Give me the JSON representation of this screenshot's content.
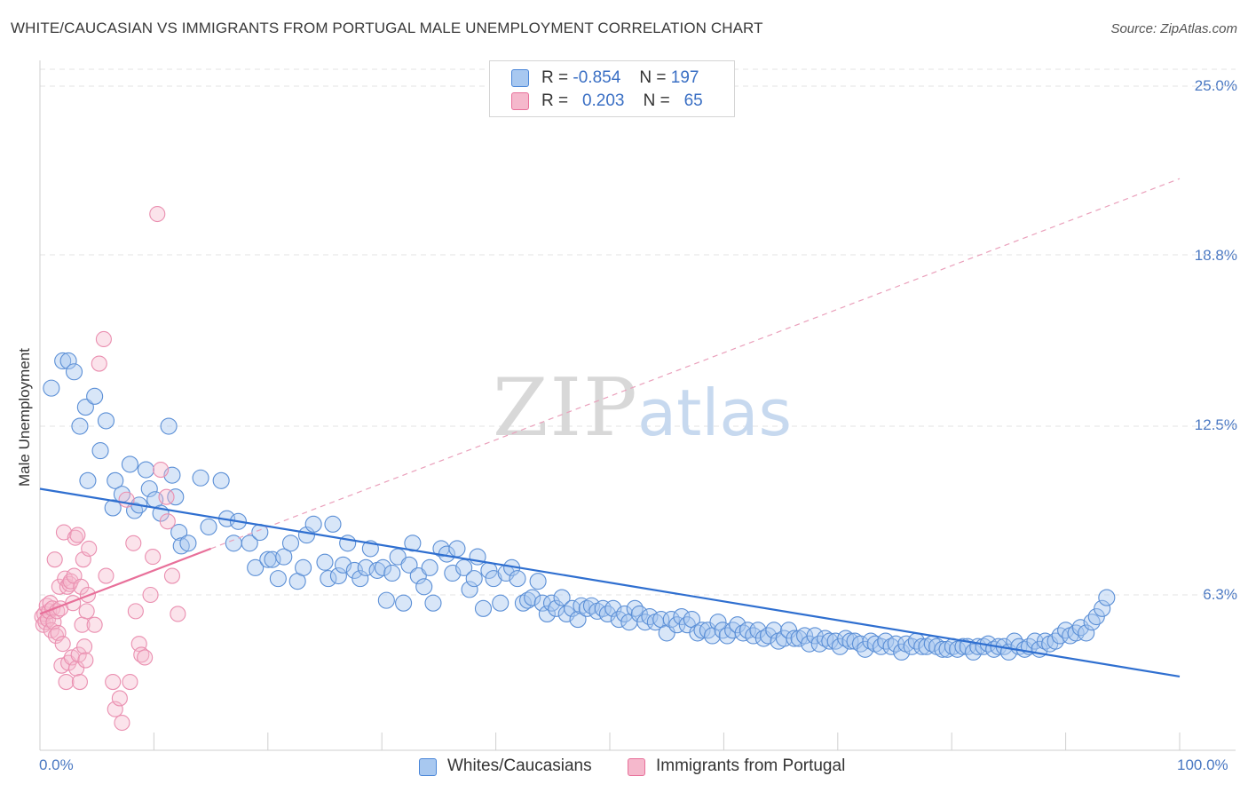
{
  "title": "WHITE/CAUCASIAN VS IMMIGRANTS FROM PORTUGAL MALE UNEMPLOYMENT CORRELATION CHART",
  "source": "Source: ZipAtlas.com",
  "colors": {
    "blue": "#4a86d8",
    "blue_fill": "#a8c8f0",
    "pink": "#e8709a",
    "pink_fill": "#f5b8cc",
    "axis_text": "#4a78c2"
  },
  "legend": {
    "rows": [
      {
        "r_label": "R =",
        "r_value": "-0.854",
        "n_label": "N =",
        "n_value": "197"
      },
      {
        "r_label": "R =",
        "r_value": "0.203",
        "n_label": "N =",
        "n_value": "65"
      }
    ]
  },
  "bottom_legend": [
    "Whites/Caucasians",
    "Immigrants from Portugal"
  ],
  "chart_data": {
    "type": "scatter",
    "xlabel": "",
    "ylabel": "Male Unemployment",
    "x_ticks": [
      "0.0%",
      "100.0%"
    ],
    "y_ticks": [
      "25.0%",
      "18.8%",
      "12.5%",
      "6.3%"
    ],
    "y_tick_values": [
      25.0,
      18.8,
      12.5,
      6.3
    ],
    "xlim": [
      0,
      100
    ],
    "ylim": [
      0,
      25.0
    ],
    "series": [
      {
        "name": "Whites/Caucasians",
        "trend": {
          "x": [
            0,
            100
          ],
          "y": [
            10.2,
            3.3
          ]
        },
        "points": [
          [
            1,
            13.9
          ],
          [
            2,
            14.9
          ],
          [
            2.5,
            14.9
          ],
          [
            3,
            14.5
          ],
          [
            3.5,
            12.5
          ],
          [
            4,
            13.2
          ],
          [
            4.2,
            10.5
          ],
          [
            4.8,
            13.6
          ],
          [
            5.3,
            11.6
          ],
          [
            5.8,
            12.7
          ],
          [
            6.4,
            9.5
          ],
          [
            6.6,
            10.5
          ],
          [
            7.2,
            10.0
          ],
          [
            7.9,
            11.1
          ],
          [
            8.3,
            9.4
          ],
          [
            8.7,
            9.6
          ],
          [
            9.3,
            10.9
          ],
          [
            9.6,
            10.2
          ],
          [
            10.1,
            9.8
          ],
          [
            10.6,
            9.3
          ],
          [
            11.3,
            12.5
          ],
          [
            11.6,
            10.7
          ],
          [
            11.9,
            9.9
          ],
          [
            12.2,
            8.6
          ],
          [
            12.4,
            8.1
          ],
          [
            13.0,
            8.2
          ],
          [
            14.1,
            10.6
          ],
          [
            14.8,
            8.8
          ],
          [
            15.9,
            10.5
          ],
          [
            16.4,
            9.1
          ],
          [
            17.0,
            8.2
          ],
          [
            17.4,
            9.0
          ],
          [
            18.4,
            8.2
          ],
          [
            18.9,
            7.3
          ],
          [
            19.3,
            8.6
          ],
          [
            20.0,
            7.6
          ],
          [
            20.4,
            7.6
          ],
          [
            20.9,
            6.9
          ],
          [
            21.4,
            7.7
          ],
          [
            22.0,
            8.2
          ],
          [
            22.6,
            6.8
          ],
          [
            23.1,
            7.3
          ],
          [
            23.4,
            8.5
          ],
          [
            24.0,
            8.9
          ],
          [
            25.0,
            7.5
          ],
          [
            25.3,
            6.9
          ],
          [
            25.7,
            8.9
          ],
          [
            26.2,
            7.0
          ],
          [
            26.6,
            7.4
          ],
          [
            27.0,
            8.2
          ],
          [
            27.6,
            7.2
          ],
          [
            28.1,
            6.9
          ],
          [
            28.6,
            7.3
          ],
          [
            29.0,
            8.0
          ],
          [
            29.6,
            7.2
          ],
          [
            30.1,
            7.3
          ],
          [
            30.4,
            6.1
          ],
          [
            30.9,
            7.1
          ],
          [
            31.4,
            7.7
          ],
          [
            31.9,
            6.0
          ],
          [
            32.4,
            7.4
          ],
          [
            32.7,
            8.2
          ],
          [
            33.2,
            7.0
          ],
          [
            33.7,
            6.6
          ],
          [
            34.2,
            7.3
          ],
          [
            34.5,
            6.0
          ],
          [
            35.2,
            8.0
          ],
          [
            35.7,
            7.8
          ],
          [
            36.2,
            7.1
          ],
          [
            36.6,
            8.0
          ],
          [
            37.2,
            7.3
          ],
          [
            37.7,
            6.5
          ],
          [
            38.1,
            6.9
          ],
          [
            38.4,
            7.7
          ],
          [
            38.9,
            5.8
          ],
          [
            39.4,
            7.2
          ],
          [
            39.8,
            6.9
          ],
          [
            40.4,
            6.0
          ],
          [
            40.9,
            7.1
          ],
          [
            41.4,
            7.3
          ],
          [
            41.9,
            6.9
          ],
          [
            42.4,
            6.0
          ],
          [
            42.8,
            6.1
          ],
          [
            43.2,
            6.2
          ],
          [
            43.7,
            6.8
          ],
          [
            44.1,
            6.0
          ],
          [
            44.5,
            5.6
          ],
          [
            44.9,
            6.0
          ],
          [
            45.3,
            5.8
          ],
          [
            45.8,
            6.2
          ],
          [
            46.2,
            5.6
          ],
          [
            46.7,
            5.8
          ],
          [
            47.2,
            5.4
          ],
          [
            47.5,
            5.9
          ],
          [
            48.0,
            5.8
          ],
          [
            48.4,
            5.9
          ],
          [
            48.9,
            5.7
          ],
          [
            49.4,
            5.8
          ],
          [
            49.8,
            5.6
          ],
          [
            50.3,
            5.8
          ],
          [
            50.8,
            5.4
          ],
          [
            51.3,
            5.6
          ],
          [
            51.7,
            5.3
          ],
          [
            52.2,
            5.8
          ],
          [
            52.6,
            5.6
          ],
          [
            53.1,
            5.3
          ],
          [
            53.5,
            5.5
          ],
          [
            54.0,
            5.3
          ],
          [
            54.5,
            5.4
          ],
          [
            55.0,
            4.9
          ],
          [
            55.4,
            5.4
          ],
          [
            55.9,
            5.2
          ],
          [
            56.3,
            5.5
          ],
          [
            56.8,
            5.2
          ],
          [
            57.2,
            5.4
          ],
          [
            57.7,
            4.9
          ],
          [
            58.1,
            5.0
          ],
          [
            58.6,
            5.0
          ],
          [
            59.0,
            4.8
          ],
          [
            59.5,
            5.3
          ],
          [
            59.9,
            5.0
          ],
          [
            60.3,
            4.8
          ],
          [
            60.8,
            5.0
          ],
          [
            61.2,
            5.2
          ],
          [
            61.7,
            4.9
          ],
          [
            62.1,
            5.0
          ],
          [
            62.6,
            4.8
          ],
          [
            63.0,
            5.0
          ],
          [
            63.5,
            4.7
          ],
          [
            63.9,
            4.8
          ],
          [
            64.4,
            5.0
          ],
          [
            64.8,
            4.6
          ],
          [
            65.3,
            4.7
          ],
          [
            65.7,
            5.0
          ],
          [
            66.2,
            4.7
          ],
          [
            66.6,
            4.7
          ],
          [
            67.1,
            4.8
          ],
          [
            67.5,
            4.5
          ],
          [
            68.0,
            4.8
          ],
          [
            68.4,
            4.5
          ],
          [
            68.9,
            4.7
          ],
          [
            69.3,
            4.6
          ],
          [
            69.8,
            4.6
          ],
          [
            70.2,
            4.4
          ],
          [
            70.7,
            4.7
          ],
          [
            71.1,
            4.6
          ],
          [
            71.5,
            4.6
          ],
          [
            72.0,
            4.5
          ],
          [
            72.4,
            4.3
          ],
          [
            72.9,
            4.6
          ],
          [
            73.3,
            4.5
          ],
          [
            73.8,
            4.4
          ],
          [
            74.2,
            4.6
          ],
          [
            74.7,
            4.4
          ],
          [
            75.1,
            4.5
          ],
          [
            75.6,
            4.2
          ],
          [
            76.0,
            4.5
          ],
          [
            76.5,
            4.4
          ],
          [
            76.9,
            4.6
          ],
          [
            77.4,
            4.4
          ],
          [
            77.8,
            4.4
          ],
          [
            78.3,
            4.5
          ],
          [
            78.7,
            4.4
          ],
          [
            79.2,
            4.3
          ],
          [
            79.6,
            4.3
          ],
          [
            80.1,
            4.4
          ],
          [
            80.5,
            4.3
          ],
          [
            81.0,
            4.4
          ],
          [
            81.4,
            4.4
          ],
          [
            81.9,
            4.2
          ],
          [
            82.3,
            4.4
          ],
          [
            82.8,
            4.4
          ],
          [
            83.2,
            4.5
          ],
          [
            83.7,
            4.3
          ],
          [
            84.1,
            4.4
          ],
          [
            84.6,
            4.4
          ],
          [
            85.0,
            4.2
          ],
          [
            85.5,
            4.6
          ],
          [
            85.9,
            4.4
          ],
          [
            86.4,
            4.3
          ],
          [
            86.8,
            4.4
          ],
          [
            87.3,
            4.6
          ],
          [
            87.7,
            4.3
          ],
          [
            88.2,
            4.6
          ],
          [
            88.6,
            4.5
          ],
          [
            89.1,
            4.6
          ],
          [
            89.5,
            4.8
          ],
          [
            90.0,
            5.0
          ],
          [
            90.4,
            4.8
          ],
          [
            90.9,
            4.9
          ],
          [
            91.3,
            5.1
          ],
          [
            91.8,
            4.9
          ],
          [
            92.3,
            5.3
          ],
          [
            92.7,
            5.5
          ],
          [
            93.2,
            5.8
          ],
          [
            93.6,
            6.2
          ]
        ]
      },
      {
        "name": "Immigrants from Portugal",
        "trend": {
          "x": [
            0,
            15
          ],
          "y": [
            5.6,
            8.0
          ]
        },
        "points": [
          [
            0.2,
            5.5
          ],
          [
            0.3,
            5.2
          ],
          [
            0.4,
            5.6
          ],
          [
            0.5,
            5.3
          ],
          [
            0.6,
            5.9
          ],
          [
            0.7,
            5.4
          ],
          [
            0.8,
            5.7
          ],
          [
            0.9,
            6.0
          ],
          [
            1.0,
            5.0
          ],
          [
            1.1,
            5.8
          ],
          [
            1.2,
            5.3
          ],
          [
            1.3,
            7.6
          ],
          [
            1.4,
            4.8
          ],
          [
            1.5,
            5.7
          ],
          [
            1.6,
            4.9
          ],
          [
            1.7,
            6.6
          ],
          [
            1.8,
            5.8
          ],
          [
            1.9,
            3.7
          ],
          [
            2.0,
            4.5
          ],
          [
            2.1,
            8.6
          ],
          [
            2.2,
            6.9
          ],
          [
            2.3,
            3.1
          ],
          [
            2.4,
            6.6
          ],
          [
            2.5,
            3.8
          ],
          [
            2.6,
            6.7
          ],
          [
            2.7,
            6.8
          ],
          [
            2.8,
            4.0
          ],
          [
            2.9,
            6.0
          ],
          [
            3.0,
            7.0
          ],
          [
            3.1,
            8.4
          ],
          [
            3.2,
            3.6
          ],
          [
            3.3,
            8.5
          ],
          [
            3.4,
            4.1
          ],
          [
            3.5,
            3.1
          ],
          [
            3.6,
            6.6
          ],
          [
            3.7,
            5.2
          ],
          [
            3.8,
            7.6
          ],
          [
            3.9,
            4.4
          ],
          [
            4.0,
            3.9
          ],
          [
            4.1,
            5.7
          ],
          [
            4.2,
            6.3
          ],
          [
            4.3,
            8.0
          ],
          [
            4.8,
            5.2
          ],
          [
            5.2,
            14.8
          ],
          [
            5.6,
            15.7
          ],
          [
            5.8,
            7.0
          ],
          [
            6.4,
            3.1
          ],
          [
            6.6,
            2.1
          ],
          [
            7.0,
            2.5
          ],
          [
            7.2,
            1.6
          ],
          [
            7.6,
            9.8
          ],
          [
            7.9,
            3.1
          ],
          [
            8.2,
            8.2
          ],
          [
            8.4,
            5.7
          ],
          [
            8.7,
            4.5
          ],
          [
            8.9,
            4.1
          ],
          [
            9.2,
            4.0
          ],
          [
            9.7,
            6.3
          ],
          [
            9.9,
            7.7
          ],
          [
            10.3,
            20.3
          ],
          [
            10.6,
            10.9
          ],
          [
            11.1,
            9.9
          ],
          [
            11.2,
            9.0
          ],
          [
            11.6,
            7.0
          ],
          [
            12.1,
            5.6
          ]
        ]
      }
    ],
    "grid": true,
    "legend_position": "top-center"
  }
}
